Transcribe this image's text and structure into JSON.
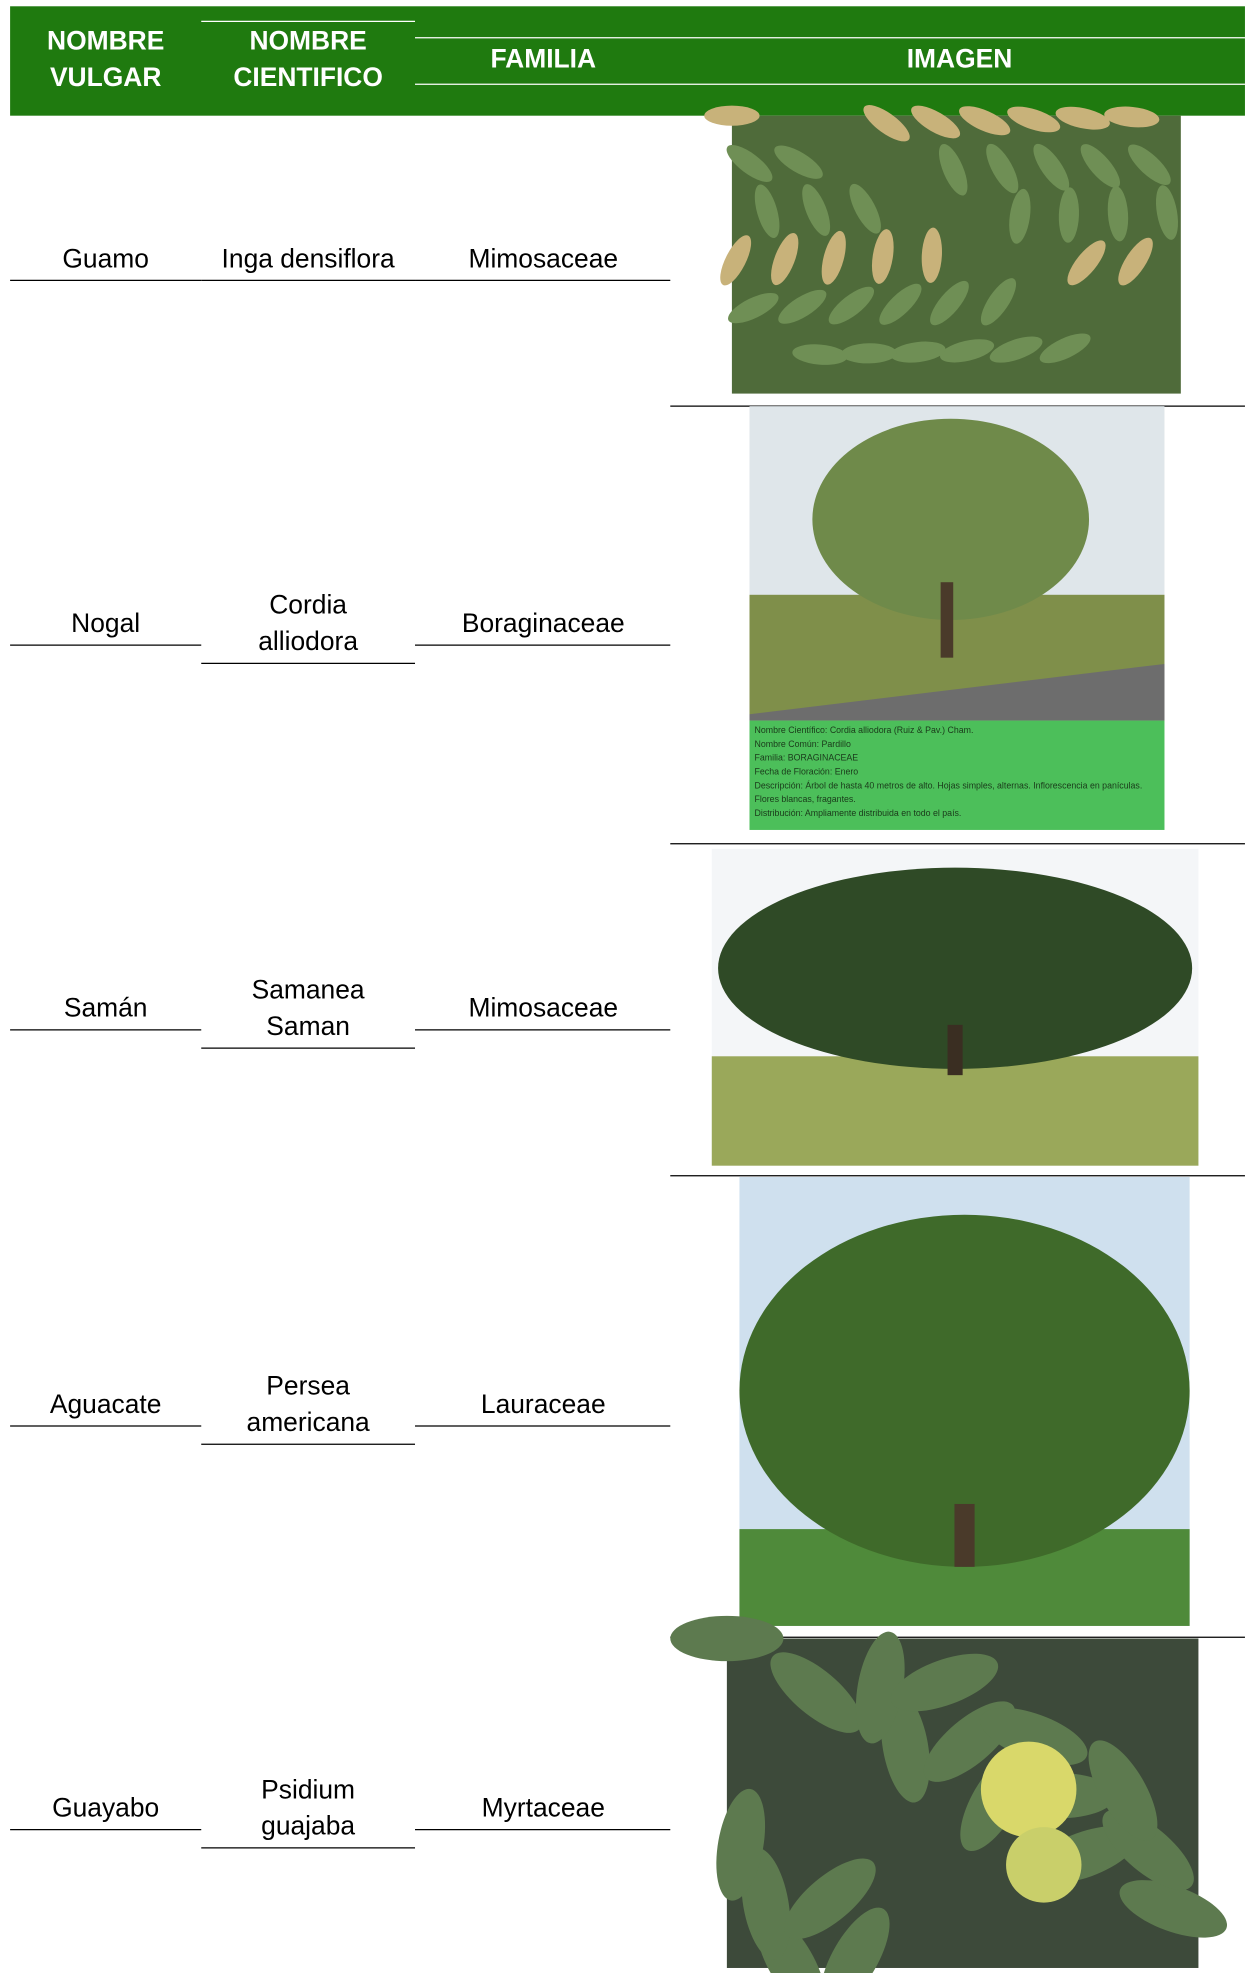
{
  "header": {
    "columns": [
      [
        "NOMBRE",
        "VULGAR"
      ],
      [
        "NOMBRE",
        "CIENTIFICO"
      ],
      [
        "FAMILIA"
      ],
      [
        "IMAGEN"
      ]
    ]
  },
  "table": {
    "rows": [
      [
        [
          "Guamo"
        ],
        [
          "Inga densiflora"
        ],
        [
          "Mimosaceae"
        ]
      ],
      [
        [
          "Nogal"
        ],
        [
          "Cordia",
          "alliodora"
        ],
        [
          "Boraginaceae"
        ]
      ],
      [
        [
          "Samán"
        ],
        [
          "Samanea",
          "Saman"
        ],
        [
          "Mimosaceae"
        ]
      ],
      [
        [
          "Aguacate"
        ],
        [
          "Persea",
          "americana"
        ],
        [
          "Lauraceae"
        ]
      ],
      [
        [
          "Guayabo"
        ],
        [
          "Psidium",
          "guajaba"
        ],
        [
          "Myrtaceae"
        ]
      ]
    ]
  },
  "image_caption": {
    "lines": [
      "Nombre Científico: Cordia alliodora (Ruiz & Pav.) Cham.",
      "Nombre Común: Pardillo",
      "Familia: BORAGINACEAE",
      "Fecha de Floración: Enero",
      "Descripción: Árbol de hasta 40 metros de alto. Hojas simples, alternas. Inflorescencia en panículas.",
      "Flores blancas, fragantes.",
      "Distribución: Ampliamente distribuida en todo el país."
    ]
  }
}
